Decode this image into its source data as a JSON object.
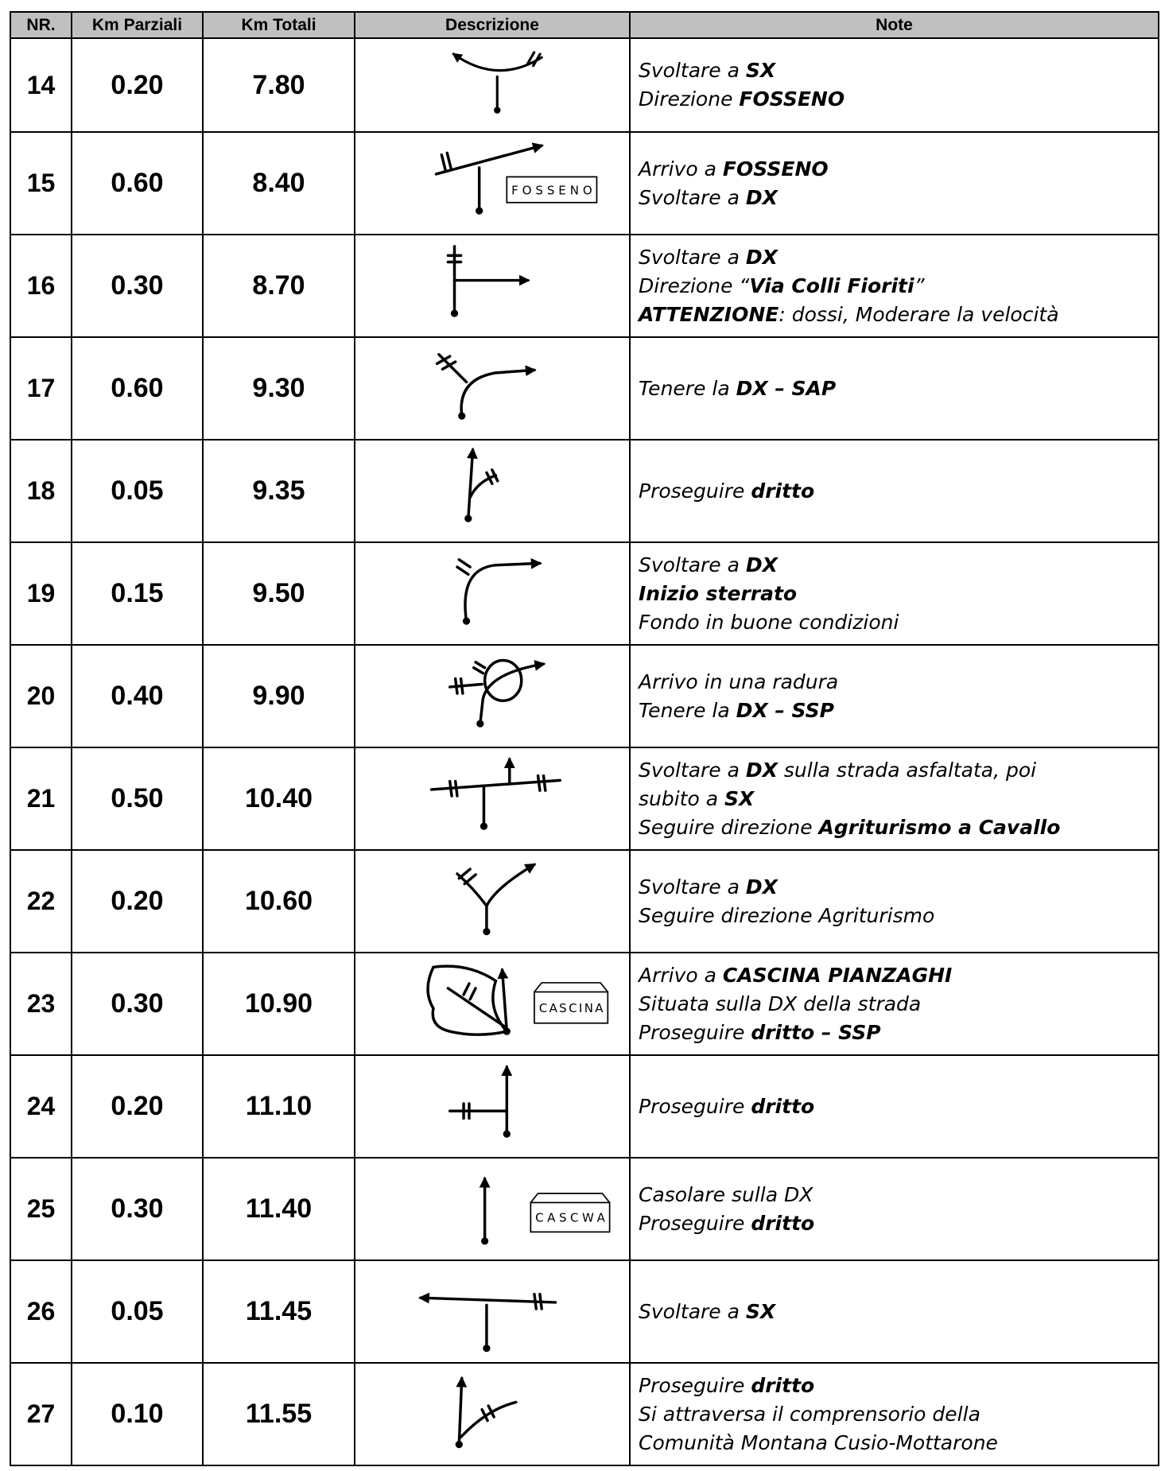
{
  "header": [
    "NR.",
    "Km Parziali",
    "Km Totali",
    "Descrizione",
    "Note"
  ],
  "rows": [
    {
      "nr": "14",
      "km_parziali": "0.20",
      "km_totali": "7.80",
      "note": [
        [
          {
            "text": "Svoltare a "
          },
          {
            "text": "SX",
            "bold": true
          }
        ],
        [
          {
            "text": "Direzione "
          },
          {
            "text": "FOSSENO",
            "bold": true
          }
        ]
      ]
    },
    {
      "nr": "15",
      "km_parziali": "0.60",
      "km_totali": "8.40",
      "sign": "FOSSENO",
      "note": [
        [
          {
            "text": "Arrivo a "
          },
          {
            "text": "FOSSENO",
            "bold": true
          }
        ],
        [
          {
            "text": "Svoltare a "
          },
          {
            "text": "DX",
            "bold": true
          }
        ]
      ]
    },
    {
      "nr": "16",
      "km_parziali": "0.30",
      "km_totali": "8.70",
      "note": [
        [
          {
            "text": "Svoltare a "
          },
          {
            "text": "DX",
            "bold": true
          }
        ],
        [
          {
            "text": "Direzione “"
          },
          {
            "text": "Via Colli Fioriti",
            "bold": true
          },
          {
            "text": "”"
          }
        ],
        [
          {
            "text": "ATTENZIONE",
            "bold": true
          },
          {
            "text": ": dossi, Moderare la velocità"
          }
        ]
      ]
    },
    {
      "nr": "17",
      "km_parziali": "0.60",
      "km_totali": "9.30",
      "note": [
        [
          {
            "text": "Tenere la "
          },
          {
            "text": "DX – SAP",
            "bold": true
          }
        ]
      ]
    },
    {
      "nr": "18",
      "km_parziali": "0.05",
      "km_totali": "9.35",
      "note": [
        [
          {
            "text": "Proseguire "
          },
          {
            "text": "dritto",
            "bold": true
          }
        ]
      ]
    },
    {
      "nr": "19",
      "km_parziali": "0.15",
      "km_totali": "9.50",
      "note": [
        [
          {
            "text": "Svoltare a "
          },
          {
            "text": "DX",
            "bold": true
          }
        ],
        [
          {
            "text": "Inizio sterrato",
            "bold": true
          }
        ],
        [
          {
            "text": "Fondo in buone condizioni"
          }
        ]
      ]
    },
    {
      "nr": "20",
      "km_parziali": "0.40",
      "km_totali": "9.90",
      "note": [
        [
          {
            "text": "Arrivo in una radura"
          }
        ],
        [
          {
            "text": "Tenere la "
          },
          {
            "text": "DX – SSP",
            "bold": true
          }
        ]
      ]
    },
    {
      "nr": "21",
      "km_parziali": "0.50",
      "km_totali": "10.40",
      "note": [
        [
          {
            "text": "Svoltare a "
          },
          {
            "text": "DX",
            "bold": true
          },
          {
            "text": " sulla strada asfaltata, poi"
          }
        ],
        [
          {
            "text": "subito a "
          },
          {
            "text": "SX",
            "bold": true
          }
        ],
        [
          {
            "text": "Seguire direzione "
          },
          {
            "text": "Agriturismo a Cavallo",
            "bold": true
          }
        ]
      ]
    },
    {
      "nr": "22",
      "km_parziali": "0.20",
      "km_totali": "10.60",
      "note": [
        [
          {
            "text": "Svoltare a "
          },
          {
            "text": "DX",
            "bold": true
          }
        ],
        [
          {
            "text": "Seguire direzione Agriturismo"
          }
        ]
      ]
    },
    {
      "nr": "23",
      "km_parziali": "0.30",
      "km_totali": "10.90",
      "sign": "CASCINA",
      "note": [
        [
          {
            "text": "Arrivo a "
          },
          {
            "text": "CASCINA PIANZAGHI",
            "bold": true
          }
        ],
        [
          {
            "text": "Situata sulla DX della strada"
          }
        ],
        [
          {
            "text": "Proseguire "
          },
          {
            "text": "dritto – SSP",
            "bold": true
          }
        ]
      ]
    },
    {
      "nr": "24",
      "km_parziali": "0.20",
      "km_totali": "11.10",
      "note": [
        [
          {
            "text": "Proseguire "
          },
          {
            "text": "dritto",
            "bold": true
          }
        ]
      ]
    },
    {
      "nr": "25",
      "km_parziali": "0.30",
      "km_totali": "11.40",
      "sign": "CASCWA",
      "note": [
        [
          {
            "text": "Casolare sulla DX"
          }
        ],
        [
          {
            "text": "Proseguire "
          },
          {
            "text": "dritto",
            "bold": true
          }
        ]
      ]
    },
    {
      "nr": "26",
      "km_parziali": "0.05",
      "km_totali": "11.45",
      "note": [
        [
          {
            "text": "Svoltare a "
          },
          {
            "text": "SX",
            "bold": true
          }
        ]
      ]
    },
    {
      "nr": "27",
      "km_parziali": "0.10",
      "km_totali": "11.55",
      "note": [
        [
          {
            "text": "Proseguire "
          },
          {
            "text": "dritto",
            "bold": true
          }
        ],
        [
          {
            "text": "Si attraversa il comprensorio della"
          }
        ],
        [
          {
            "text": "Comunità Montana Cusio-Mottarone"
          }
        ]
      ]
    }
  ]
}
